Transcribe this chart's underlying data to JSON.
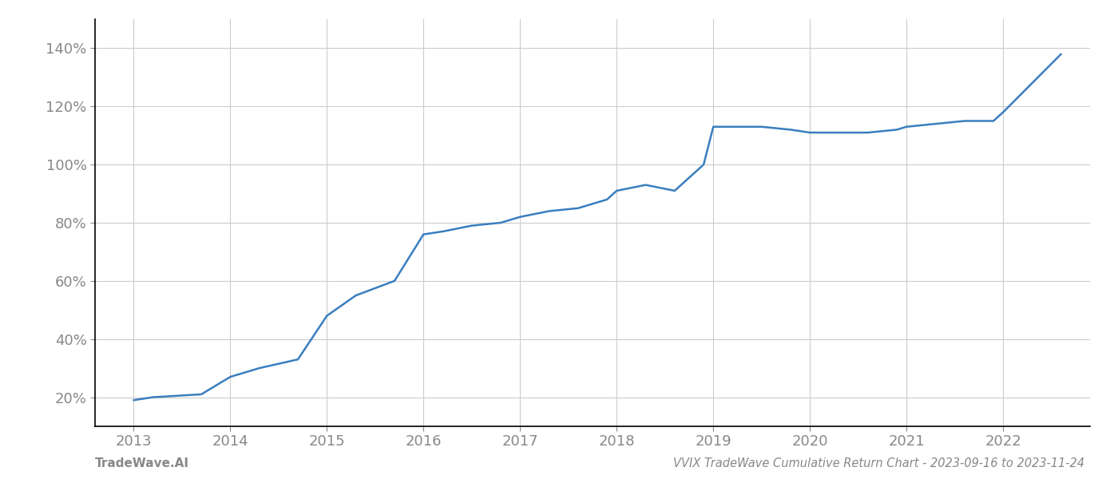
{
  "x_years": [
    2013.0,
    2013.2,
    2013.7,
    2014.0,
    2014.3,
    2014.7,
    2015.0,
    2015.3,
    2015.7,
    2016.0,
    2016.2,
    2016.5,
    2016.8,
    2017.0,
    2017.3,
    2017.6,
    2017.9,
    2018.0,
    2018.3,
    2018.6,
    2018.9,
    2019.0,
    2019.2,
    2019.5,
    2019.8,
    2020.0,
    2020.3,
    2020.6,
    2020.9,
    2021.0,
    2021.3,
    2021.6,
    2021.9,
    2022.0,
    2022.3,
    2022.6
  ],
  "y_values": [
    19,
    20,
    21,
    27,
    30,
    33,
    48,
    55,
    60,
    76,
    77,
    79,
    80,
    82,
    84,
    85,
    88,
    91,
    93,
    91,
    100,
    113,
    113,
    113,
    112,
    111,
    111,
    111,
    112,
    113,
    114,
    115,
    115,
    118,
    128,
    138
  ],
  "line_color": "#3a7ebf",
  "line_width": 1.8,
  "title": "VVIX TradeWave Cumulative Return Chart - 2023-09-16 to 2023-11-24",
  "footer_left": "TradeWave.AI",
  "background_color": "#ffffff",
  "grid_color": "#cccccc",
  "tick_color": "#888888",
  "label_color": "#888888",
  "spine_color": "#000000",
  "xlim": [
    2012.6,
    2022.9
  ],
  "ylim": [
    10,
    150
  ],
  "yticks": [
    20,
    40,
    60,
    80,
    100,
    120,
    140
  ],
  "xticks": [
    2013,
    2014,
    2015,
    2016,
    2017,
    2018,
    2019,
    2020,
    2021,
    2022
  ]
}
